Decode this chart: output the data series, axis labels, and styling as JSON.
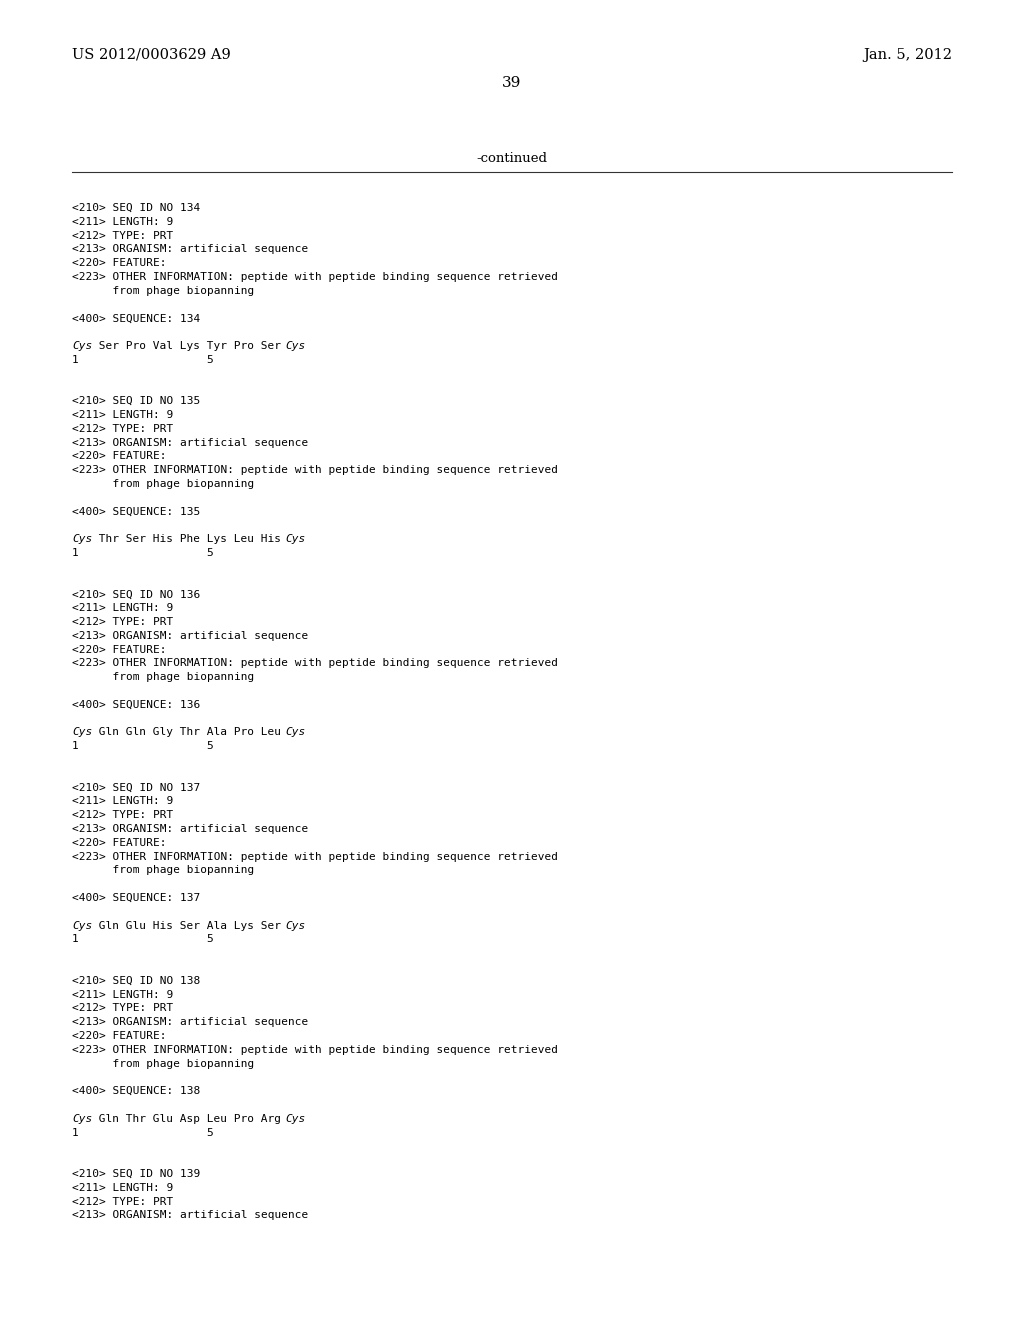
{
  "background_color": "#ffffff",
  "header_left": "US 2012/0003629 A9",
  "header_right": "Jan. 5, 2012",
  "page_number": "39",
  "continued_label": "-continued",
  "header_fs": 10.5,
  "page_num_fs": 11,
  "continued_fs": 9.5,
  "mono_fs": 8.0,
  "sequences": [
    {
      "id": "134",
      "seq_line": [
        {
          "italic": true,
          "text": "Cys"
        },
        {
          "italic": false,
          "text": " Ser Pro Val Lys Tyr Pro Ser "
        },
        {
          "italic": true,
          "text": "Cys"
        }
      ]
    },
    {
      "id": "135",
      "seq_line": [
        {
          "italic": true,
          "text": "Cys"
        },
        {
          "italic": false,
          "text": " Thr Ser His Phe Lys Leu His "
        },
        {
          "italic": true,
          "text": "Cys"
        }
      ]
    },
    {
      "id": "136",
      "seq_line": [
        {
          "italic": true,
          "text": "Cys"
        },
        {
          "italic": false,
          "text": " Gln Gln Gly Thr Ala Pro Leu "
        },
        {
          "italic": true,
          "text": "Cys"
        }
      ]
    },
    {
      "id": "137",
      "seq_line": [
        {
          "italic": true,
          "text": "Cys"
        },
        {
          "italic": false,
          "text": " Gln Glu His Ser Ala Lys Ser "
        },
        {
          "italic": true,
          "text": "Cys"
        }
      ]
    },
    {
      "id": "138",
      "seq_line": [
        {
          "italic": true,
          "text": "Cys"
        },
        {
          "italic": false,
          "text": " Gln Thr Glu Asp Leu Pro Arg "
        },
        {
          "italic": true,
          "text": "Cys"
        }
      ]
    }
  ],
  "partial_seq": {
    "id": "139",
    "lines": [
      "<210> SEQ ID NO 139",
      "<211> LENGTH: 9",
      "<212> TYPE: PRT",
      "<213> ORGANISM: artificial sequence"
    ]
  }
}
